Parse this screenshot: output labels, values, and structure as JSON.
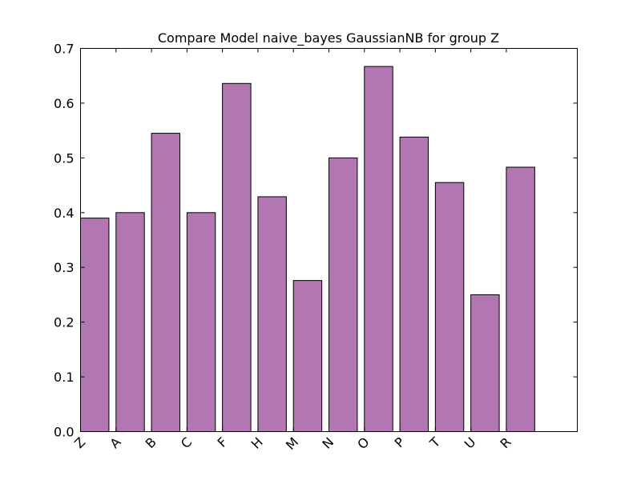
{
  "chart_data": {
    "type": "bar",
    "title": "Compare Model naive_bayes GaussianNB for group Z",
    "categories": [
      "Z",
      "A",
      "B",
      "C",
      "F",
      "H",
      "M",
      "N",
      "O",
      "P",
      "T",
      "U",
      "R"
    ],
    "values": [
      0.39,
      0.4,
      0.545,
      0.4,
      0.636,
      0.429,
      0.276,
      0.5,
      0.667,
      0.538,
      0.455,
      0.25,
      0.483
    ],
    "xlabel": "",
    "ylabel": "",
    "ylim": [
      0,
      0.7
    ],
    "yticks": [
      0.0,
      0.1,
      0.2,
      0.3,
      0.4,
      0.5,
      0.6,
      0.7
    ],
    "ytick_labels": [
      "0.0",
      "0.1",
      "0.2",
      "0.3",
      "0.4",
      "0.5",
      "0.6",
      "0.7"
    ],
    "grid": false,
    "legend": "none",
    "bar_color": "#b276b2",
    "edge_color": "#000000"
  }
}
